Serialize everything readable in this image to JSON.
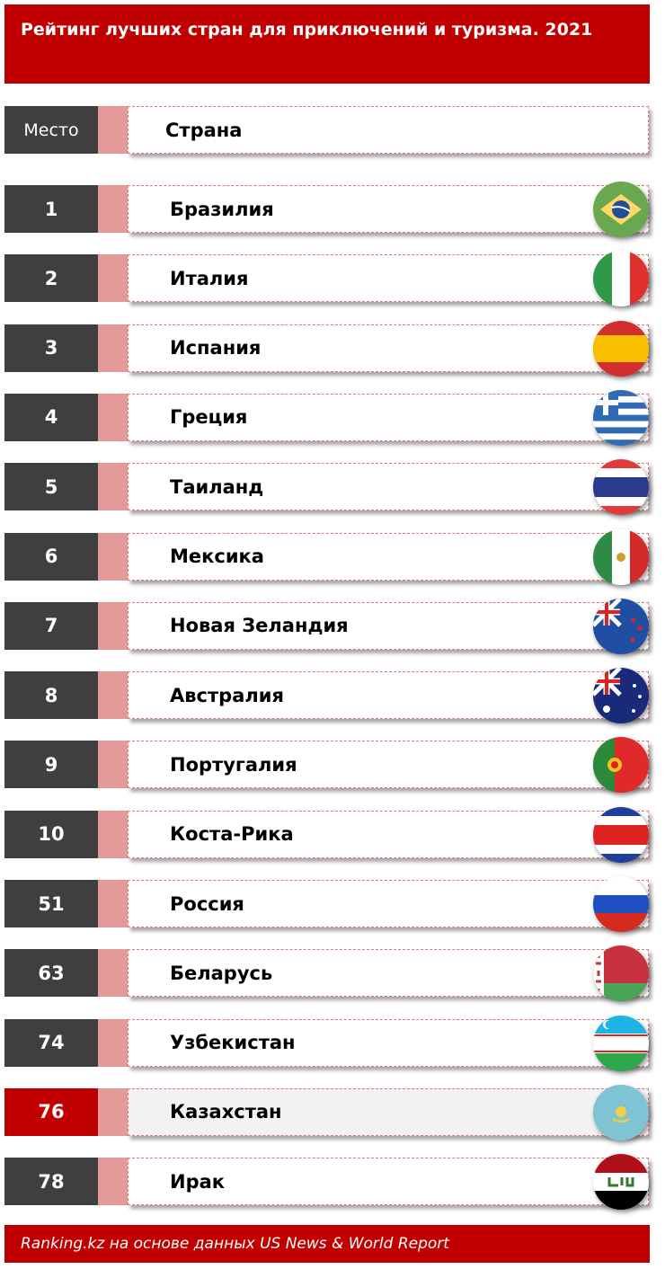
{
  "title": "Рейтинг лучших стран для приключений и туризма. 2021",
  "header": {
    "rank": "Место",
    "country": "Страна"
  },
  "rows": [
    {
      "rank": "1",
      "country": "Бразилия",
      "flag": "brazil-flag-icon"
    },
    {
      "rank": "2",
      "country": "Италия",
      "flag": "italy-flag-icon"
    },
    {
      "rank": "3",
      "country": "Испания",
      "flag": "spain-flag-icon"
    },
    {
      "rank": "4",
      "country": "Греция",
      "flag": "greece-flag-icon"
    },
    {
      "rank": "5",
      "country": "Таиланд",
      "flag": "thailand-flag-icon"
    },
    {
      "rank": "6",
      "country": "Мексика",
      "flag": "mexico-flag-icon"
    },
    {
      "rank": "7",
      "country": "Новая Зеландия",
      "flag": "new-zealand-flag-icon"
    },
    {
      "rank": "8",
      "country": "Австралия",
      "flag": "australia-flag-icon"
    },
    {
      "rank": "9",
      "country": "Португалия",
      "flag": "portugal-flag-icon"
    },
    {
      "rank": "10",
      "country": "Коста-Рика",
      "flag": "costa-rica-flag-icon"
    },
    {
      "rank": "51",
      "country": "Россия",
      "flag": "russia-flag-icon"
    },
    {
      "rank": "63",
      "country": "Беларусь",
      "flag": "belarus-flag-icon"
    },
    {
      "rank": "74",
      "country": "Узбекистан",
      "flag": "uzbekistan-flag-icon"
    },
    {
      "rank": "76",
      "country": "Казахстан",
      "flag": "kazakhstan-flag-icon",
      "highlight": true
    },
    {
      "rank": "78",
      "country": "Ирак",
      "flag": "iraq-flag-icon"
    }
  ],
  "footer": "Ranking.kz на  основе данных  US News & World Report",
  "colors": {
    "accent": "#c00000",
    "rank_bg": "#3f3f3f",
    "pink": "#e59a9a"
  }
}
